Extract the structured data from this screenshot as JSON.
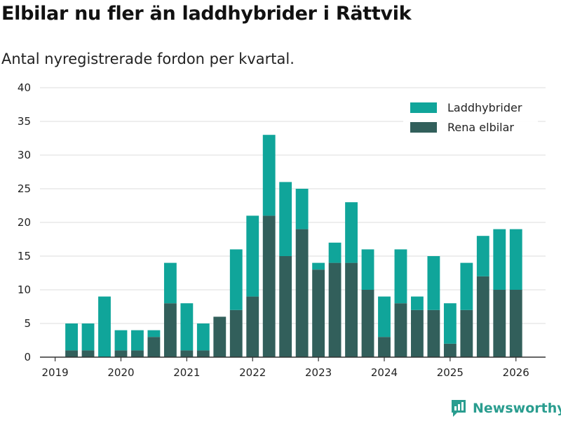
{
  "header": {
    "title": "Elbilar nu fler än laddhybrider i Rättvik",
    "subtitle": "Antal nyregistrerade fordon per kvartal."
  },
  "brand": {
    "name": "Newsworthy",
    "icon": "newsworthy-logo-icon",
    "color": "#2a9d8f"
  },
  "colors": {
    "laddhybrider": "#10a59a",
    "elbilar": "#325f5b",
    "grid": "#dddddd",
    "axis": "#333333"
  },
  "chart_data": {
    "type": "bar",
    "stacked": true,
    "title": "Elbilar nu fler än laddhybrider i Rättvik",
    "subtitle": "Antal nyregistrerade fordon per kvartal.",
    "xlabel": "",
    "ylabel": "",
    "ylim": [
      0,
      40
    ],
    "yticks": [
      0,
      5,
      10,
      15,
      20,
      25,
      30,
      35,
      40
    ],
    "xticks": [
      "2019",
      "2020",
      "2021",
      "2022",
      "2023",
      "2024",
      "2025",
      "2026"
    ],
    "grid": true,
    "legend_position": "top-right",
    "categories": [
      "2019 Q2",
      "2019 Q3",
      "2019 Q4",
      "2020 Q1",
      "2020 Q2",
      "2020 Q3",
      "2020 Q4",
      "2021 Q1",
      "2021 Q2",
      "2021 Q3",
      "2021 Q4",
      "2022 Q1",
      "2022 Q2",
      "2022 Q3",
      "2022 Q4",
      "2023 Q1",
      "2023 Q2",
      "2023 Q3",
      "2023 Q4",
      "2024 Q1",
      "2024 Q2",
      "2024 Q3",
      "2024 Q4",
      "2025 Q1",
      "2025 Q2",
      "2025 Q3",
      "2025 Q4",
      "2026 Q1"
    ],
    "series": [
      {
        "name": "Rena elbilar",
        "color": "#325f5b",
        "values": [
          1,
          1,
          0,
          1,
          1,
          3,
          8,
          1,
          1,
          6,
          7,
          9,
          21,
          15,
          19,
          13,
          14,
          14,
          10,
          3,
          8,
          7,
          7,
          2,
          7,
          12,
          10,
          10
        ]
      },
      {
        "name": "Laddhybrider",
        "color": "#10a59a",
        "values": [
          4,
          4,
          9,
          3,
          3,
          1,
          6,
          7,
          4,
          0,
          9,
          12,
          12,
          11,
          6,
          1,
          3,
          9,
          6,
          6,
          8,
          2,
          8,
          6,
          7,
          6,
          9,
          9
        ]
      }
    ],
    "legend": [
      "Laddhybrider",
      "Rena elbilar"
    ]
  }
}
